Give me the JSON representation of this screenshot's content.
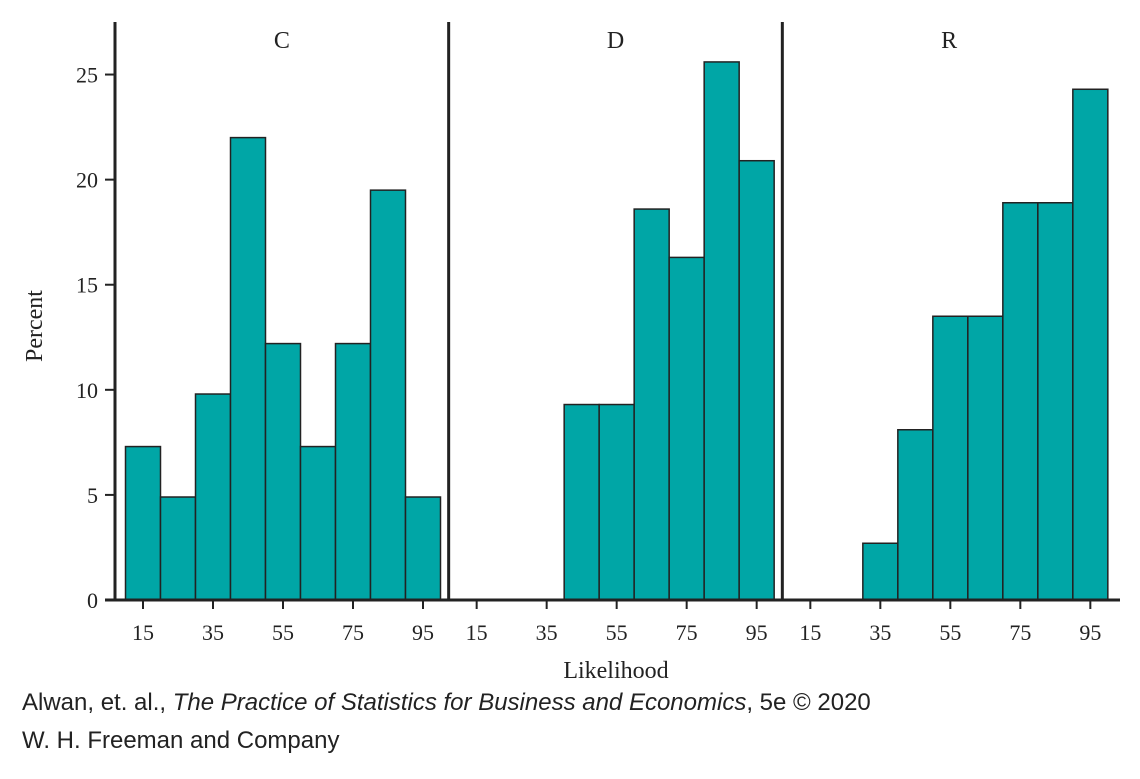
{
  "chart_data": {
    "type": "bar",
    "ylabel": "Percent",
    "xlabel": "Likelihood",
    "ylim": [
      0,
      27.5
    ],
    "yticks": [
      0,
      5,
      10,
      15,
      20,
      25
    ],
    "xticks": [
      "15",
      "35",
      "55",
      "75",
      "95"
    ],
    "bin_centers": [
      15,
      25,
      35,
      45,
      55,
      65,
      75,
      85,
      95
    ],
    "bar_color": "#00A6A6",
    "edge_color": "#222222",
    "panels": [
      {
        "name": "C",
        "values": [
          7.3,
          4.9,
          9.8,
          22.0,
          12.2,
          7.3,
          12.2,
          19.5,
          4.9
        ]
      },
      {
        "name": "D",
        "values": [
          0,
          0,
          0,
          9.3,
          9.3,
          18.6,
          16.3,
          25.6,
          20.9
        ]
      },
      {
        "name": "R",
        "values": [
          0,
          0,
          2.7,
          8.1,
          13.5,
          13.5,
          18.9,
          18.9,
          24.3
        ]
      }
    ]
  },
  "credit": {
    "line1_pre": "Alwan, et. al., ",
    "line1_title": "The Practice of Statistics for Business and Economics",
    "line1_post": ", 5e © 2020",
    "line2": "W. H. Freeman and Company"
  }
}
